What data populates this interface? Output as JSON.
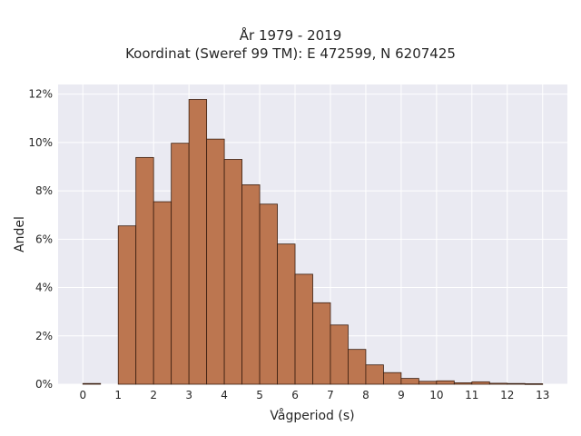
{
  "chart_data": {
    "type": "bar",
    "title_lines": [
      "År 1979 - 2019",
      "Koordinat (Sweref 99 TM): E 472599, N 6207425"
    ],
    "xlabel": "Vågperiod (s)",
    "ylabel": "Andel",
    "xlim": [
      -0.7,
      13.7
    ],
    "ylim": [
      0,
      12.4
    ],
    "x_ticks": [
      "0",
      "1",
      "2",
      "3",
      "4",
      "5",
      "6",
      "7",
      "8",
      "9",
      "10",
      "11",
      "12",
      "13"
    ],
    "y_ticks": [
      "0%",
      "2%",
      "4%",
      "6%",
      "8%",
      "10%",
      "12%"
    ],
    "y_tick_values": [
      0,
      2,
      4,
      6,
      8,
      10,
      12
    ],
    "bin_width": 0.5,
    "bin_starts": [
      0,
      0.5,
      1,
      1.5,
      2,
      2.5,
      3,
      3.5,
      4,
      4.5,
      5,
      5.5,
      6,
      6.5,
      7,
      7.5,
      8,
      8.5,
      9,
      9.5,
      10,
      10.5,
      11,
      11.5,
      12,
      12.5
    ],
    "values": [
      0.03,
      0.0,
      6.55,
      9.38,
      7.55,
      9.97,
      11.78,
      10.14,
      9.3,
      8.25,
      7.45,
      5.8,
      4.55,
      3.37,
      2.45,
      1.44,
      0.8,
      0.48,
      0.24,
      0.12,
      0.14,
      0.06,
      0.1,
      0.04,
      0.03,
      0.02
    ],
    "grid": true,
    "colors": {
      "bar": "#bc7650",
      "bar_edge": "#3a1e10",
      "plot_bg": "#eaeaf2",
      "grid": "#ffffff"
    }
  }
}
